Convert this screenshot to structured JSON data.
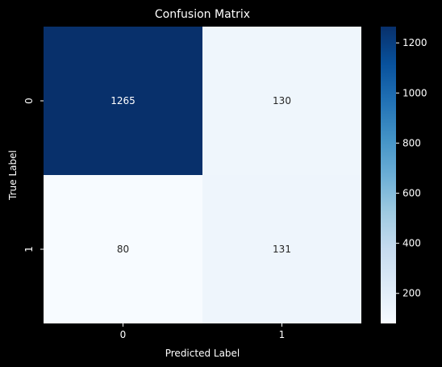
{
  "chart_data": {
    "type": "heatmap",
    "title": "Confusion Matrix",
    "xlabel": "Predicted Label",
    "ylabel": "True Label",
    "x_categories": [
      "0",
      "1"
    ],
    "y_categories": [
      "0",
      "1"
    ],
    "values": [
      [
        1265,
        130
      ],
      [
        80,
        131
      ]
    ],
    "colormap": "Blues",
    "vmin": 80,
    "vmax": 1265,
    "colorbar_ticks": [
      200,
      400,
      600,
      800,
      1000,
      1200
    ],
    "colorbar_tick_labels": [
      "200",
      "400",
      "600",
      "800",
      "1000",
      "1200"
    ],
    "legend": "colorbar-right",
    "grid": false
  },
  "colors": {
    "background": "#000000",
    "text": "#ffffff",
    "cell_text_dark": "#262626",
    "cell_text_light": "#ffffff"
  }
}
